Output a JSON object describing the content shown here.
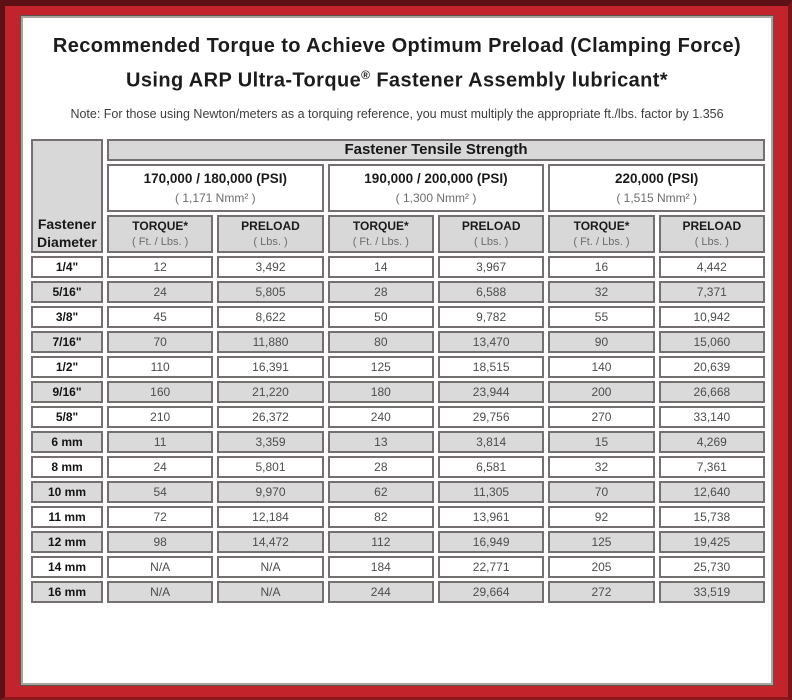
{
  "colors": {
    "frame_red": "#c3232a",
    "frame_dark_edge": "#5e1115",
    "header_gray": "#d8d8d8",
    "row_shade_gray": "#dadada",
    "cell_border": "#757070"
  },
  "header": {
    "title_line1": "Recommended Torque to Achieve Optimum Preload (Clamping Force)",
    "title_line2_pre": "Using ARP Ultra-Torque",
    "title_line2_sup": "®",
    "title_line2_post": " Fastener Assembly lubricant*",
    "note": "Note: For those using Newton/meters as a torquing reference, you must multiply the appropriate ft./lbs. factor by 1.356"
  },
  "table": {
    "group_header": "Fastener Tensile Strength",
    "corner_line1": "Fastener",
    "corner_line2": "Diameter",
    "groups": [
      {
        "psi": "170,000 / 180,000 (PSI)",
        "nmm": "( 1,171 Nmm² )"
      },
      {
        "psi": "190,000 / 200,000 (PSI)",
        "nmm": "( 1,300 Nmm² )"
      },
      {
        "psi": "220,000 (PSI)",
        "nmm": "( 1,515 Nmm² )"
      }
    ],
    "sub_headers": [
      {
        "label": "TORQUE*",
        "unit": "( Ft. / Lbs. )"
      },
      {
        "label": "PRELOAD",
        "unit": "( Lbs. )"
      }
    ],
    "rows": [
      {
        "diameter": "1/4\"",
        "values": [
          "12",
          "3,492",
          "14",
          "3,967",
          "16",
          "4,442"
        ]
      },
      {
        "diameter": "5/16\"",
        "values": [
          "24",
          "5,805",
          "28",
          "6,588",
          "32",
          "7,371"
        ]
      },
      {
        "diameter": "3/8\"",
        "values": [
          "45",
          "8,622",
          "50",
          "9,782",
          "55",
          "10,942"
        ]
      },
      {
        "diameter": "7/16\"",
        "values": [
          "70",
          "11,880",
          "80",
          "13,470",
          "90",
          "15,060"
        ]
      },
      {
        "diameter": "1/2\"",
        "values": [
          "110",
          "16,391",
          "125",
          "18,515",
          "140",
          "20,639"
        ]
      },
      {
        "diameter": "9/16\"",
        "values": [
          "160",
          "21,220",
          "180",
          "23,944",
          "200",
          "26,668"
        ]
      },
      {
        "diameter": "5/8\"",
        "values": [
          "210",
          "26,372",
          "240",
          "29,756",
          "270",
          "33,140"
        ]
      },
      {
        "diameter": "6 mm",
        "values": [
          "11",
          "3,359",
          "13",
          "3,814",
          "15",
          "4,269"
        ]
      },
      {
        "diameter": "8 mm",
        "values": [
          "24",
          "5,801",
          "28",
          "6,581",
          "32",
          "7,361"
        ]
      },
      {
        "diameter": "10 mm",
        "values": [
          "54",
          "9,970",
          "62",
          "11,305",
          "70",
          "12,640"
        ]
      },
      {
        "diameter": "11 mm",
        "values": [
          "72",
          "12,184",
          "82",
          "13,961",
          "92",
          "15,738"
        ]
      },
      {
        "diameter": "12 mm",
        "values": [
          "98",
          "14,472",
          "112",
          "16,949",
          "125",
          "19,425"
        ]
      },
      {
        "diameter": "14 mm",
        "values": [
          "N/A",
          "N/A",
          "184",
          "22,771",
          "205",
          "25,730"
        ]
      },
      {
        "diameter": "16 mm",
        "values": [
          "N/A",
          "N/A",
          "244",
          "29,664",
          "272",
          "33,519"
        ]
      }
    ]
  }
}
